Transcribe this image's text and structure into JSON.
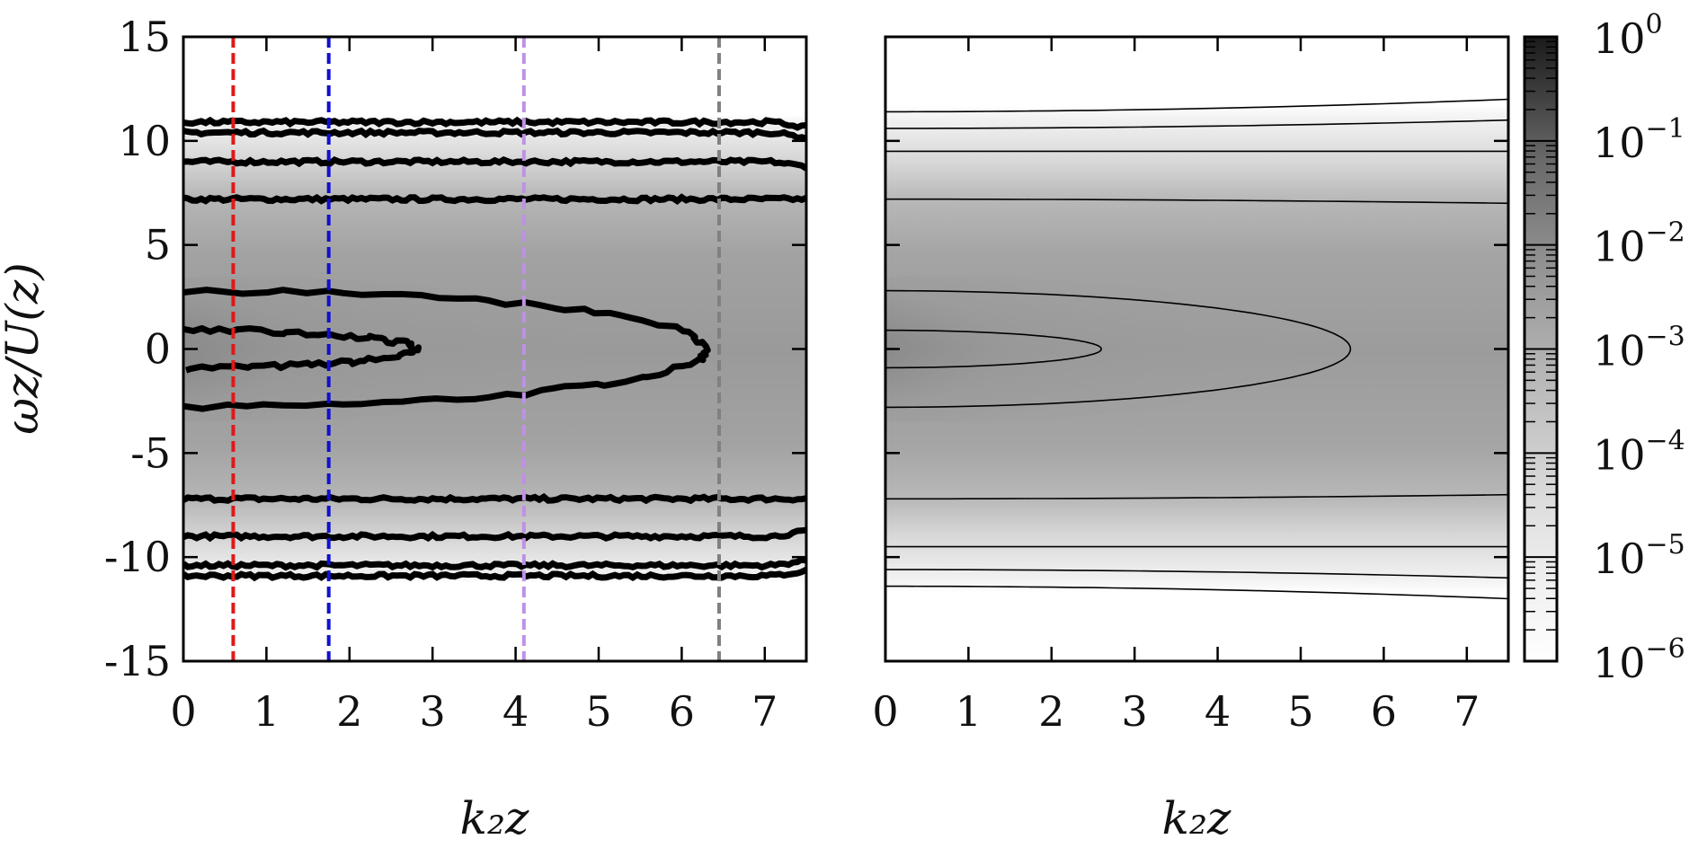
{
  "chart_data": [
    {
      "type": "heatmap",
      "panel": "left",
      "xlabel": "k₂z",
      "ylabel": "ωz/U(z)",
      "xlim": [
        0,
        7.5
      ],
      "ylim": [
        -15,
        15
      ],
      "x_ticks": [
        0,
        1,
        2,
        3,
        4,
        5,
        6,
        7
      ],
      "y_ticks": [
        -15,
        -10,
        -5,
        0,
        5,
        10,
        15
      ],
      "y_tick_labels": [
        "-15",
        "-10",
        "-5",
        "0",
        "5",
        "10",
        "15"
      ],
      "colormap": "grayscale log",
      "vertical_lines": [
        {
          "x": 0.6,
          "color": "#e01818",
          "style": "dashed"
        },
        {
          "x": 1.75,
          "color": "#1010d0",
          "style": "dashed"
        },
        {
          "x": 4.1,
          "color": "#c090e8",
          "style": "dashed"
        },
        {
          "x": 6.45,
          "color": "#808080",
          "style": "dashed"
        }
      ],
      "contours": [
        {
          "level": 0.1,
          "half_width_at_k0": 0.9,
          "x_extent": 2.8,
          "noisy": true
        },
        {
          "level": 0.01,
          "half_width_at_k0": 2.8,
          "x_extent": 6.3,
          "noisy": true
        },
        {
          "level": 0.001,
          "y": 7.2,
          "noisy": true
        },
        {
          "level": 0.0001,
          "y": 9.0,
          "noisy": true
        },
        {
          "level": 1e-05,
          "y": 10.4,
          "noisy": true
        },
        {
          "level": 1e-06,
          "y": 10.9,
          "noisy": true
        }
      ]
    },
    {
      "type": "heatmap",
      "panel": "right",
      "xlabel": "k₂z",
      "xlim": [
        0,
        7.5
      ],
      "ylim": [
        -15,
        15
      ],
      "x_ticks": [
        0,
        1,
        2,
        3,
        4,
        5,
        6,
        7
      ],
      "colormap": "grayscale log",
      "contours": [
        {
          "level": 0.1,
          "half_width_at_k0": 0.9,
          "x_extent": 2.6,
          "noisy": false
        },
        {
          "level": 0.01,
          "half_width_at_k0": 2.8,
          "x_extent": 5.6,
          "noisy": false
        },
        {
          "level": 0.001,
          "y": 7.2,
          "y_at_end": 7.0,
          "noisy": false
        },
        {
          "level": 0.0001,
          "y": 9.5,
          "y_at_end": 9.5,
          "noisy": false
        },
        {
          "level": 1e-05,
          "y": 10.6,
          "y_at_end": 11.0,
          "noisy": false
        },
        {
          "level": 1e-06,
          "y": 11.4,
          "y_at_end": 12.0,
          "noisy": false
        }
      ]
    }
  ],
  "colorbar": {
    "scale": "log",
    "range": [
      1e-06,
      1
    ],
    "tick_labels": [
      {
        "base": "10",
        "exp": "0"
      },
      {
        "base": "10",
        "exp": "−1"
      },
      {
        "base": "10",
        "exp": "−2"
      },
      {
        "base": "10",
        "exp": "−3"
      },
      {
        "base": "10",
        "exp": "−4"
      },
      {
        "base": "10",
        "exp": "−5"
      },
      {
        "base": "10",
        "exp": "−6"
      }
    ]
  }
}
